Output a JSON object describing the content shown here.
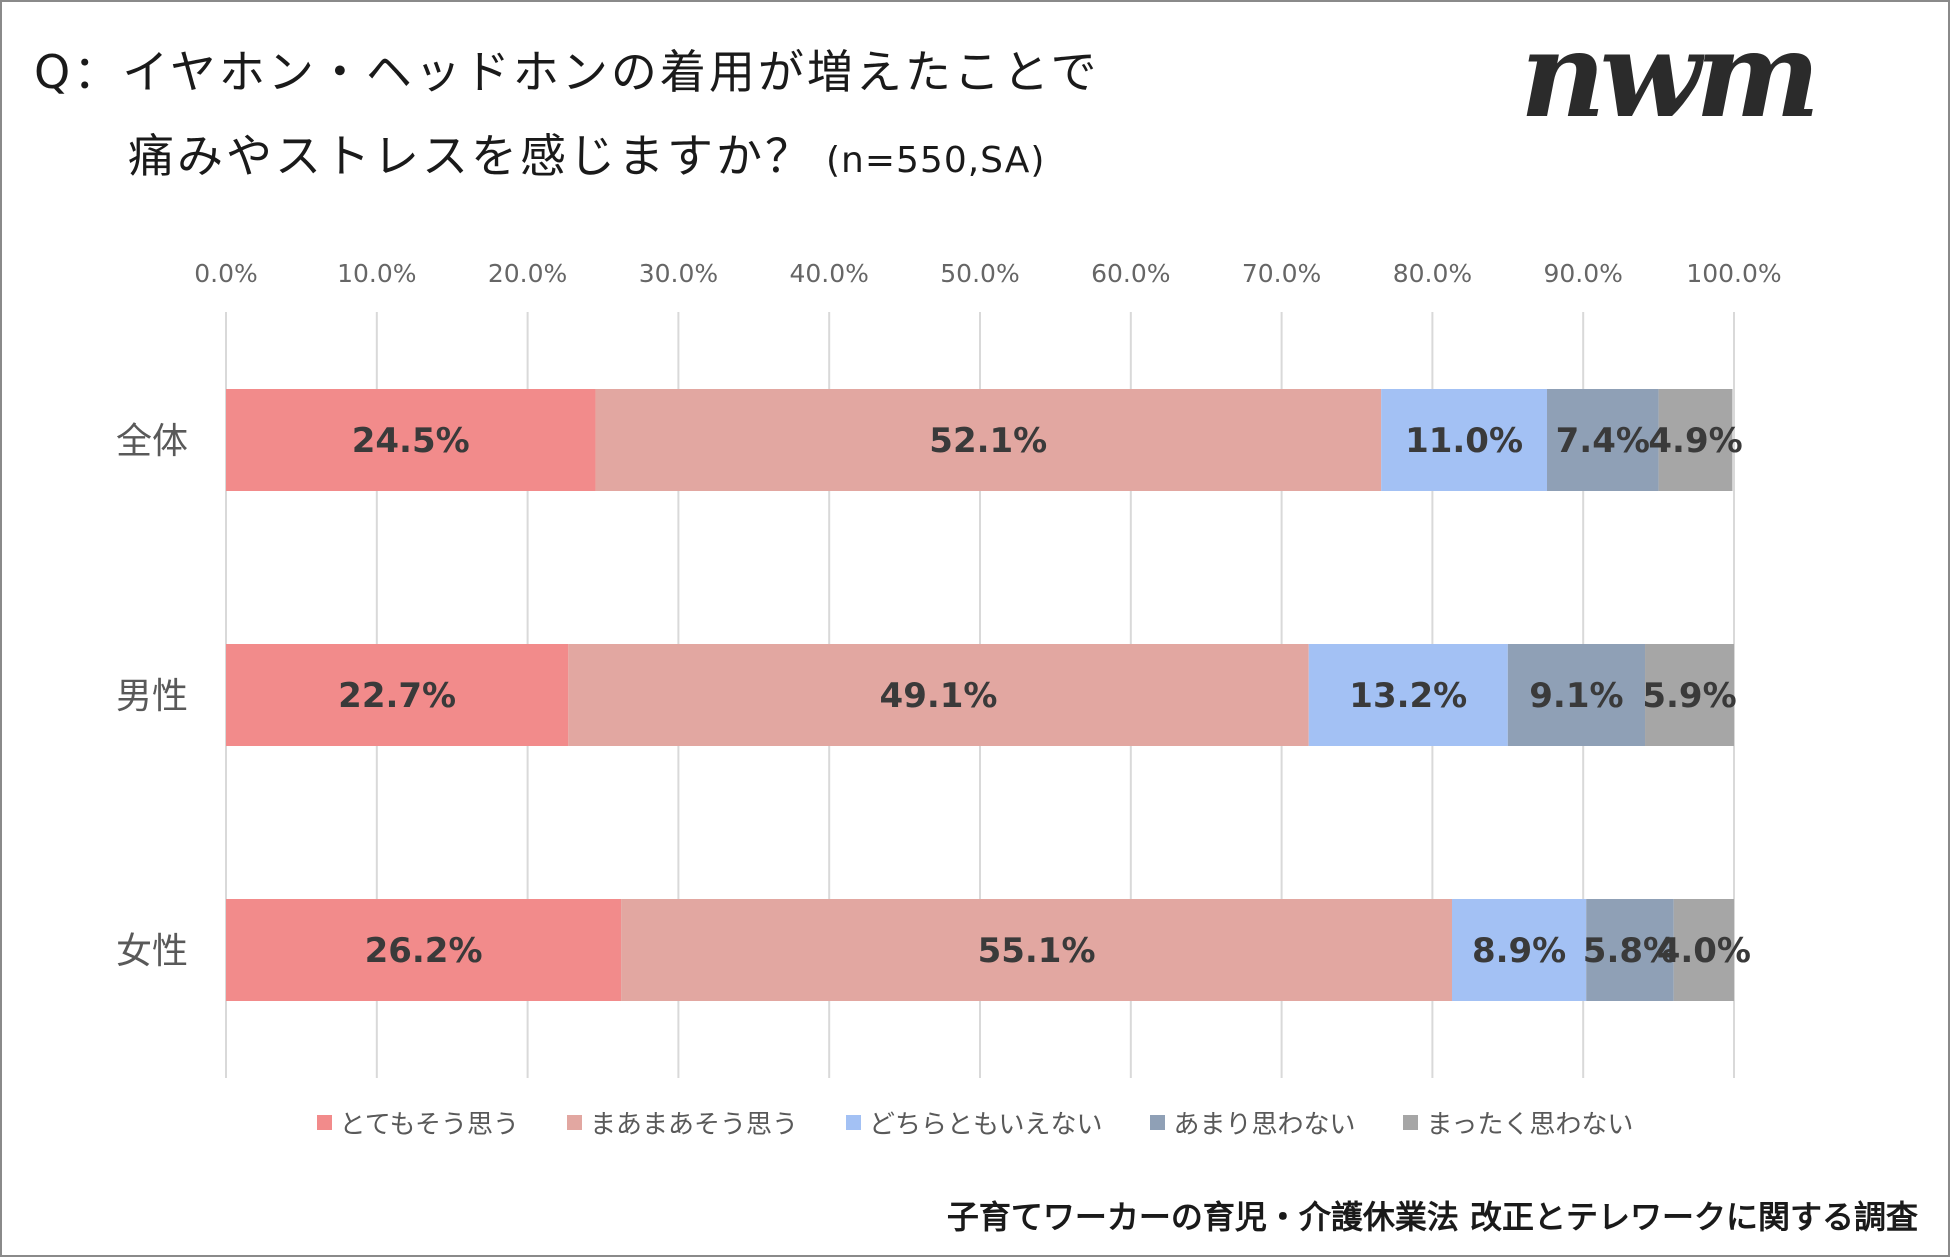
{
  "title": {
    "line1": "Q：イヤホン・ヘッドホンの着用が増えたことで",
    "line2": "痛みやストレスを感じますか？",
    "sample": "(n=550,SA)"
  },
  "logo": "nwm",
  "footer": "子育てワーカーの育児・介護休業法 改正とテレワークに関する調査",
  "chart_data": {
    "type": "bar",
    "orientation": "horizontal",
    "stacked": "100%",
    "categories": [
      "全体",
      "男性",
      "女性"
    ],
    "series": [
      {
        "name": "とてもそう思う",
        "color": "#f28b8b",
        "values": [
          24.5,
          22.7,
          26.2
        ],
        "labels": [
          "24.5%",
          "22.7%",
          "26.2%"
        ]
      },
      {
        "name": "まあまあそう思う",
        "color": "#e2a7a1",
        "values": [
          52.1,
          49.1,
          55.1
        ],
        "labels": [
          "52.1%",
          "49.1%",
          "55.1%"
        ]
      },
      {
        "name": "どちらともいえない",
        "color": "#a3c1f4",
        "values": [
          11.0,
          13.2,
          8.9
        ],
        "labels": [
          "11.0%",
          "13.2%",
          "8.9%"
        ]
      },
      {
        "name": "あまり思わない",
        "color": "#8fa0b6",
        "values": [
          7.4,
          9.1,
          5.8
        ],
        "labels": [
          "7.4%",
          "9.1%",
          "5.8%"
        ]
      },
      {
        "name": "まったく思わない",
        "color": "#a6a6a6",
        "values": [
          4.9,
          5.9,
          4.0
        ],
        "labels": [
          "4.9%",
          "5.9%",
          "4.0%"
        ]
      }
    ],
    "xlim": [
      0,
      100
    ],
    "xticks": [
      "0.0%",
      "10.0%",
      "20.0%",
      "30.0%",
      "40.0%",
      "50.0%",
      "60.0%",
      "70.0%",
      "80.0%",
      "90.0%",
      "100.0%"
    ],
    "grid": true,
    "legend_position": "bottom"
  }
}
